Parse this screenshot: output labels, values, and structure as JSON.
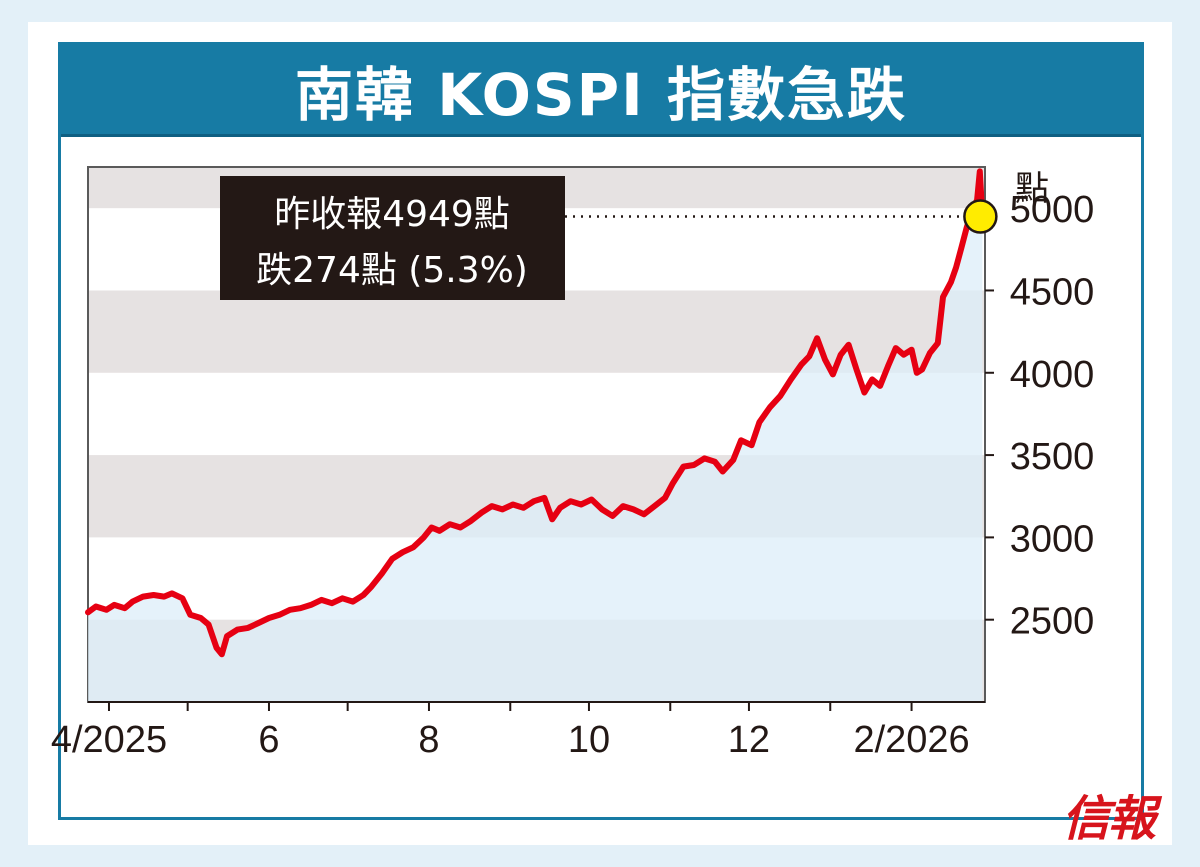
{
  "title": "南韓 KOSPI 指數急跌",
  "brand": "信報",
  "annotation": {
    "line1": "昨收報4949點",
    "line2": "跌274點 (5.3%)"
  },
  "colors": {
    "frame": "#177ba4",
    "line": "#e60012",
    "area": "#dcedf8",
    "band": "#e6e2e2",
    "marker": "#ffec00",
    "annotation_bg": "#231815"
  },
  "chart_data": {
    "type": "line",
    "title": "南韓 KOSPI 指數急跌",
    "xlabel": "",
    "ylabel": "點",
    "ylim": [
      2000,
      5250
    ],
    "yticks": [
      2500,
      3000,
      3500,
      4000,
      4500,
      5000
    ],
    "xlim": [
      "2025-03-24",
      "2026-03-01"
    ],
    "xticks": [
      {
        "date": "2025-04-01",
        "label": "4/2025"
      },
      {
        "date": "2025-06-01",
        "label": "6"
      },
      {
        "date": "2025-08-01",
        "label": "8"
      },
      {
        "date": "2025-10-01",
        "label": "10"
      },
      {
        "date": "2025-12-01",
        "label": "12"
      },
      {
        "date": "2026-02-01",
        "label": "2/2026"
      }
    ],
    "grid": "alternating horizontal bands",
    "series": [
      {
        "points": [
          [
            "2025-03-24",
            2545
          ],
          [
            "2025-03-27",
            2580
          ],
          [
            "2025-03-31",
            2560
          ],
          [
            "2025-04-03",
            2590
          ],
          [
            "2025-04-07",
            2570
          ],
          [
            "2025-04-10",
            2610
          ],
          [
            "2025-04-14",
            2640
          ],
          [
            "2025-04-18",
            2650
          ],
          [
            "2025-04-22",
            2640
          ],
          [
            "2025-04-25",
            2660
          ],
          [
            "2025-04-29",
            2630
          ],
          [
            "2025-05-02",
            2530
          ],
          [
            "2025-05-06",
            2510
          ],
          [
            "2025-05-09",
            2470
          ],
          [
            "2025-05-12",
            2330
          ],
          [
            "2025-05-14",
            2290
          ],
          [
            "2025-05-16",
            2400
          ],
          [
            "2025-05-20",
            2440
          ],
          [
            "2025-05-24",
            2450
          ],
          [
            "2025-05-28",
            2480
          ],
          [
            "2025-06-01",
            2510
          ],
          [
            "2025-06-05",
            2530
          ],
          [
            "2025-06-09",
            2560
          ],
          [
            "2025-06-13",
            2570
          ],
          [
            "2025-06-17",
            2590
          ],
          [
            "2025-06-21",
            2620
          ],
          [
            "2025-06-25",
            2600
          ],
          [
            "2025-06-29",
            2630
          ],
          [
            "2025-07-03",
            2610
          ],
          [
            "2025-07-07",
            2650
          ],
          [
            "2025-07-10",
            2700
          ],
          [
            "2025-07-14",
            2780
          ],
          [
            "2025-07-18",
            2870
          ],
          [
            "2025-07-22",
            2910
          ],
          [
            "2025-07-26",
            2940
          ],
          [
            "2025-07-30",
            3000
          ],
          [
            "2025-08-02",
            3060
          ],
          [
            "2025-08-05",
            3040
          ],
          [
            "2025-08-09",
            3080
          ],
          [
            "2025-08-13",
            3060
          ],
          [
            "2025-08-17",
            3100
          ],
          [
            "2025-08-21",
            3150
          ],
          [
            "2025-08-25",
            3190
          ],
          [
            "2025-08-29",
            3170
          ],
          [
            "2025-09-02",
            3200
          ],
          [
            "2025-09-06",
            3180
          ],
          [
            "2025-09-10",
            3220
          ],
          [
            "2025-09-14",
            3240
          ],
          [
            "2025-09-17",
            3110
          ],
          [
            "2025-09-20",
            3180
          ],
          [
            "2025-09-24",
            3220
          ],
          [
            "2025-09-28",
            3200
          ],
          [
            "2025-10-02",
            3230
          ],
          [
            "2025-10-06",
            3170
          ],
          [
            "2025-10-10",
            3130
          ],
          [
            "2025-10-14",
            3190
          ],
          [
            "2025-10-18",
            3170
          ],
          [
            "2025-10-22",
            3140
          ],
          [
            "2025-10-26",
            3190
          ],
          [
            "2025-10-30",
            3240
          ],
          [
            "2025-11-02",
            3330
          ],
          [
            "2025-11-06",
            3430
          ],
          [
            "2025-11-10",
            3440
          ],
          [
            "2025-11-14",
            3480
          ],
          [
            "2025-11-18",
            3460
          ],
          [
            "2025-11-21",
            3400
          ],
          [
            "2025-11-25",
            3470
          ],
          [
            "2025-11-28",
            3590
          ],
          [
            "2025-12-02",
            3560
          ],
          [
            "2025-12-05",
            3700
          ],
          [
            "2025-12-09",
            3790
          ],
          [
            "2025-12-13",
            3860
          ],
          [
            "2025-12-17",
            3960
          ],
          [
            "2025-12-21",
            4050
          ],
          [
            "2025-12-24",
            4100
          ],
          [
            "2025-12-27",
            4210
          ],
          [
            "2025-12-30",
            4080
          ],
          [
            "2026-01-02",
            3990
          ],
          [
            "2026-01-05",
            4110
          ],
          [
            "2026-01-08",
            4170
          ],
          [
            "2026-01-11",
            4020
          ],
          [
            "2026-01-14",
            3880
          ],
          [
            "2026-01-17",
            3960
          ],
          [
            "2026-01-20",
            3920
          ],
          [
            "2026-01-23",
            4040
          ],
          [
            "2026-01-26",
            4150
          ],
          [
            "2026-01-29",
            4110
          ],
          [
            "2026-02-01",
            4140
          ],
          [
            "2026-02-03",
            4000
          ],
          [
            "2026-02-05",
            4020
          ],
          [
            "2026-02-08",
            4120
          ],
          [
            "2026-02-11",
            4180
          ],
          [
            "2026-02-13",
            4460
          ],
          [
            "2026-02-16",
            4550
          ],
          [
            "2026-02-18",
            4640
          ],
          [
            "2026-02-20",
            4760
          ],
          [
            "2026-02-22",
            4880
          ],
          [
            "2026-02-24",
            4980
          ],
          [
            "2026-02-26",
            5050
          ],
          [
            "2026-02-27",
            5223
          ],
          [
            "2026-02-28",
            4949
          ]
        ]
      }
    ],
    "highlight": {
      "date": "2026-02-28",
      "value": 4949
    }
  }
}
